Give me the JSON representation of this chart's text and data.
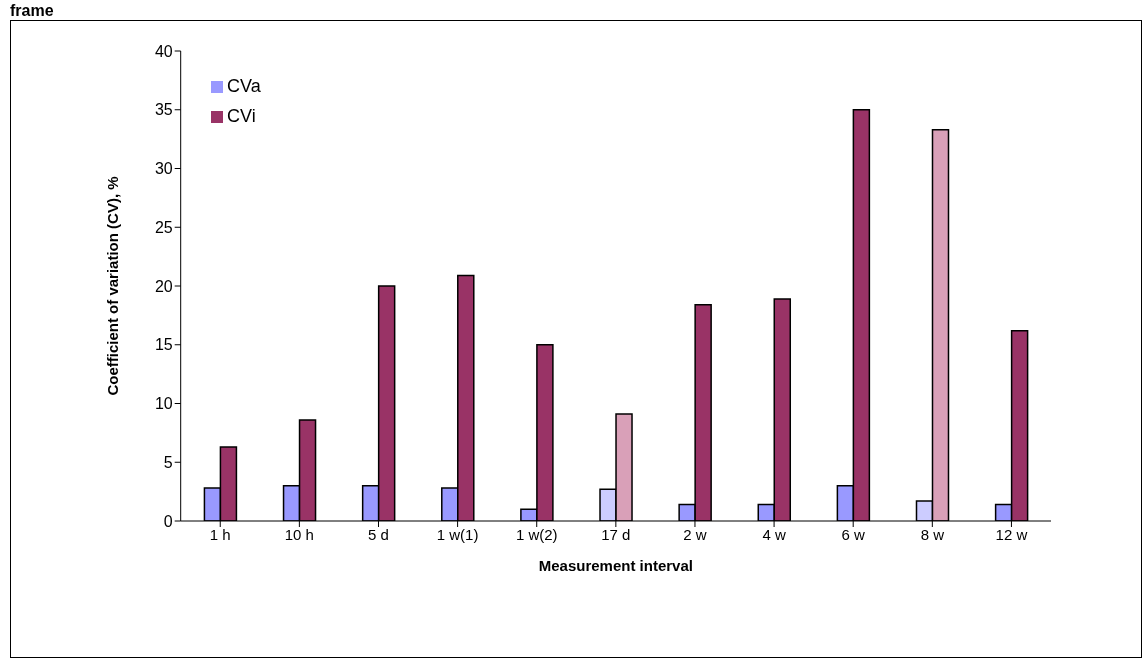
{
  "chart_data": {
    "type": "bar",
    "xlabel": "Measurement  interval",
    "ylabel": "Coefficient  of variation (CV), %",
    "annotations": [
      "frame"
    ],
    "categories": [
      "1 h",
      "10 h",
      "5 d",
      "1 w(1)",
      "1 w(2)",
      "17 d",
      "2 w",
      "4 w",
      "6 w",
      "8 w",
      "12 w"
    ],
    "series": [
      {
        "name": "CVa",
        "color": "#9999ff",
        "colors": [
          "#9999ff",
          "#9999ff",
          "#9999ff",
          "#9999ff",
          "#9999ff",
          "#ccccff",
          "#9999ff",
          "#9999ff",
          "#9999ff",
          "#ccccff",
          "#9999ff"
        ],
        "values": [
          2.8,
          3.0,
          3.0,
          2.8,
          1.0,
          2.7,
          1.4,
          1.4,
          3.0,
          1.7,
          1.4
        ]
      },
      {
        "name": "CVi",
        "color": "#993366",
        "colors": [
          "#993366",
          "#993366",
          "#993366",
          "#993366",
          "#993366",
          "#d9a0b8",
          "#993366",
          "#993366",
          "#993366",
          "#d9a0b8",
          "#993366"
        ],
        "values": [
          6.3,
          8.6,
          20,
          20.9,
          15,
          9.1,
          18.4,
          18.9,
          35,
          33.3,
          16.2
        ]
      }
    ],
    "ylim": [
      0,
      40
    ],
    "yticks": [
      0,
      5,
      10,
      15,
      20,
      25,
      30,
      35,
      40
    ],
    "grid": false,
    "legend": "top left"
  }
}
